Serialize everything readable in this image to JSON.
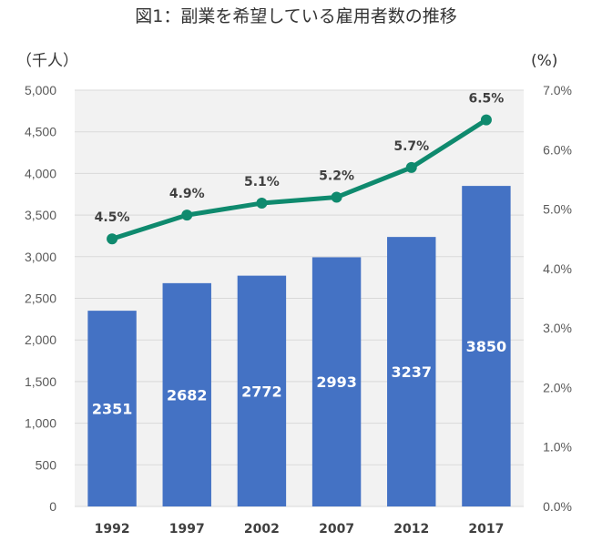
{
  "chart_data": {
    "type": "bar",
    "title": "図1：副業を希望している雇用者数の推移",
    "left_unit": "（千人）",
    "right_unit": "(%)",
    "categories": [
      "1992",
      "1997",
      "2002",
      "2007",
      "2012",
      "2017"
    ],
    "series": [
      {
        "type": "bar",
        "values": [
          2351,
          2682,
          2772,
          2993,
          3237,
          3850
        ],
        "value_labels": [
          "2351",
          "2682",
          "2772",
          "2993",
          "3237",
          "3850"
        ],
        "color": "#4472c4",
        "axis": "left"
      },
      {
        "type": "line",
        "values": [
          4.5,
          4.9,
          5.1,
          5.2,
          5.7,
          6.5
        ],
        "value_labels": [
          "4.5%",
          "4.9%",
          "5.1%",
          "5.2%",
          "5.7%",
          "6.5%"
        ],
        "color": "#0f8a6e",
        "axis": "right"
      }
    ],
    "y_left": {
      "range": [
        0,
        5000
      ],
      "ticks": [
        "0",
        "500",
        "1,000",
        "1,500",
        "2,000",
        "2,500",
        "3,000",
        "3,500",
        "4,000",
        "4,500",
        "5,000"
      ]
    },
    "y_right": {
      "range": [
        0,
        7.0
      ],
      "ticks": [
        "0.0%",
        "1.0%",
        "2.0%",
        "3.0%",
        "4.0%",
        "5.0%",
        "6.0%",
        "7.0%"
      ]
    },
    "grid": true,
    "plot_background": "#f2f2f2",
    "grid_color": "#d9d9d9"
  }
}
